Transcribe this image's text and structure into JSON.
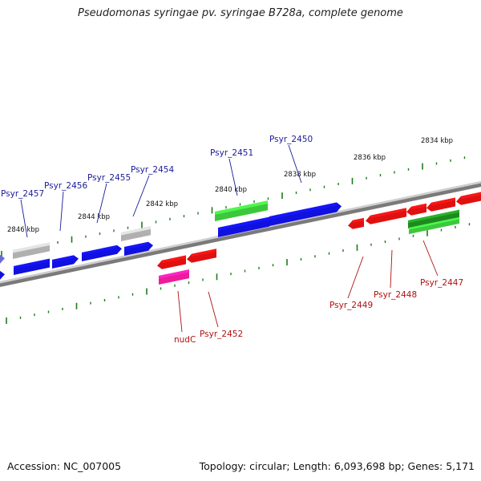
{
  "title": "Pseudomonas syringae pv. syringae B728a, complete genome",
  "footer": {
    "accession": "Accession: NC_007005",
    "stats": "Topology: circular; Length: 6,093,698 bp; Genes: 5,171"
  },
  "ticks": [
    "2846 kbp",
    "2844 kbp",
    "2842 kbp",
    "2840 kbp",
    "2838 kbp",
    "2836 kbp",
    "2834 kbp"
  ],
  "genes_top": [
    "Psyr_2457",
    "Psyr_2456",
    "Psyr_2455",
    "Psyr_2454",
    "Psyr_2451",
    "Psyr_2450"
  ],
  "genes_bottom": [
    "nudC",
    "Psyr_2452",
    "Psyr_2449",
    "Psyr_2448",
    "Psyr_2447"
  ],
  "colors": {
    "forward": "#1010e0",
    "reverse": "#e01010",
    "rna": "#ee1b9a",
    "pseudo": "#b0b0b0",
    "green": "#3cc83c",
    "darkgreen": "#1e8a1e",
    "axis": "#808080",
    "tick": "#1e7a1e",
    "label_top": "#1a1a9a",
    "label_bottom": "#b01010"
  }
}
